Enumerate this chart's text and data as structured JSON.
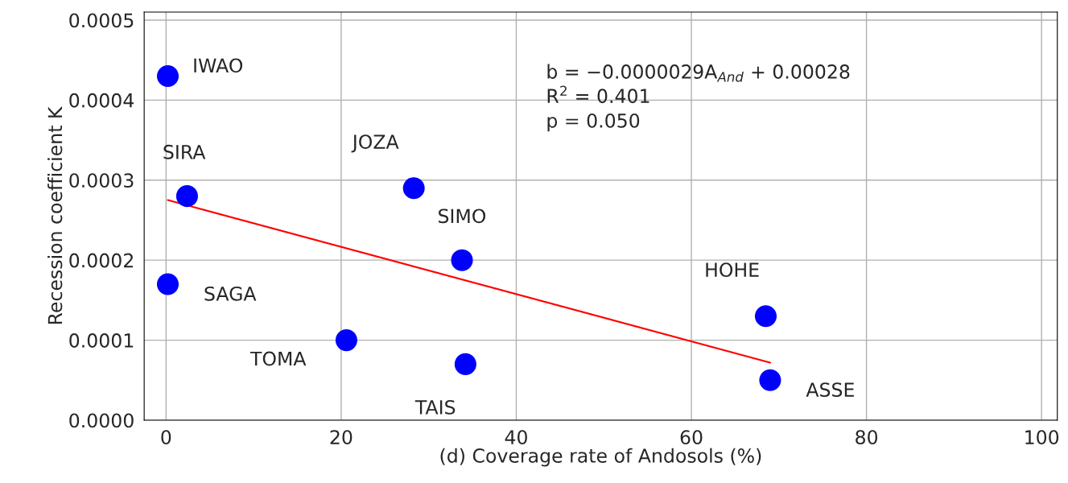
{
  "chart_data": {
    "type": "scatter",
    "xlabel": "(d) Coverage rate of Andosols (%)",
    "ylabel": "Recession coefficient K",
    "series": [
      {
        "color": "#0000ff",
        "marker": "circle",
        "x": [
          0.2,
          2.4,
          0.2,
          20.6,
          28.3,
          33.8,
          34.2,
          68.5,
          69
        ],
        "values": [
          0.00043,
          0.00028,
          0.00017,
          0.0001,
          0.00029,
          0.0002,
          7e-05,
          0.00013,
          5e-05
        ]
      },
      {
        "type": "line",
        "color": "#ff0000",
        "line_style": "solid",
        "x": [
          0.2,
          69
        ],
        "values": [
          0.000275,
          7.2e-05
        ]
      }
    ],
    "annotations": [
      {
        "text": "IWAO",
        "x": 0.2,
        "y": 0.00043
      },
      {
        "text": "SIRA",
        "x": 2.4,
        "y": 0.00028
      },
      {
        "text": "SAGA",
        "x": 0.2,
        "y": 0.00017
      },
      {
        "text": "TOMA",
        "x": 20.6,
        "y": 0.0001
      },
      {
        "text": "JOZA",
        "x": 28.3,
        "y": 0.00029
      },
      {
        "text": "SIMO",
        "x": 33.8,
        "y": 0.0002
      },
      {
        "text": "TAIS",
        "x": 34.2,
        "y": 7e-05
      },
      {
        "text": "HOHE",
        "x": 68.5,
        "y": 0.00013
      },
      {
        "text": "ASSE",
        "x": 69,
        "y": 5e-05
      },
      "b = −0.0000029A$_{And}$ + 0.00028",
      "R$^{2}$ = 0.401",
      "p = 0.050"
    ],
    "xlim": [
      -2.5,
      101.8
    ],
    "ylim": [
      0,
      0.00051
    ],
    "xticks": [
      0,
      20,
      40,
      60,
      80,
      100
    ],
    "yticks": [
      {
        "value": 0,
        "label": "0.0000"
      },
      {
        "value": 0.0001,
        "label": "0.0001"
      },
      {
        "value": 0.0002,
        "label": "0.0002"
      },
      {
        "value": 0.0003,
        "label": "0.0003"
      },
      {
        "value": 0.0004,
        "label": "0.0004"
      },
      {
        "value": 0.0005,
        "label": "0.0005"
      }
    ],
    "grid": true
  }
}
